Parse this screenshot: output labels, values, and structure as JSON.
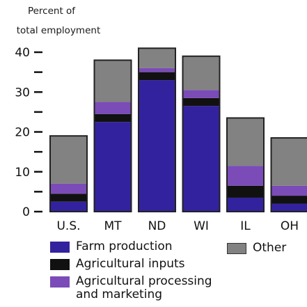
{
  "chart_data": {
    "type": "bar",
    "stacked": true,
    "ylabel": [
      "Percent of",
      "total employment"
    ],
    "ylim": [
      0,
      40
    ],
    "yticks": [
      0,
      10,
      20,
      30,
      40
    ],
    "categories": [
      "U.S.",
      "MT",
      "ND",
      "WI",
      "IL",
      "OH"
    ],
    "series": [
      {
        "name": "Farm production",
        "color": "#33229e",
        "values": [
          2.5,
          22.5,
          33,
          26.5,
          3.5,
          2
        ]
      },
      {
        "name": "Agricultural inputs",
        "color": "#111111",
        "values": [
          2,
          2,
          2,
          2,
          3,
          2
        ]
      },
      {
        "name": "Agricultural processing and marketing",
        "color": "#7b4bb8",
        "values": [
          2.5,
          3,
          1,
          2,
          5,
          2.5
        ]
      },
      {
        "name": "Other",
        "color": "#828282",
        "values": [
          12,
          10.5,
          5,
          8.5,
          12,
          12
        ]
      }
    ],
    "legend": {
      "farm": "Farm production",
      "inputs": "Agricultural inputs",
      "processing_line1": "Agricultural processing",
      "processing_line2": "and marketing",
      "other": "Other"
    }
  }
}
